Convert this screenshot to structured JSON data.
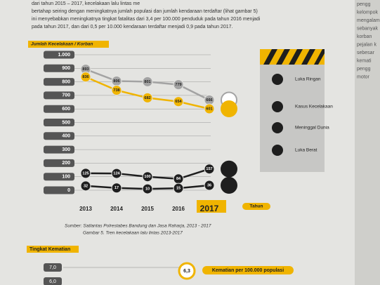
{
  "page": {
    "paragraph": [
      "dari tahun 2015 – 2017, kecelakaan lalu lintas me",
      "bertahap seiring dengan meningkatnya jumlah populasi dan jumlah kendaraan terdaftar (lihat gambar 5)",
      "ini menyebabkan meningkatnya tingkat fatalitas dari 3,4 per 100.000 penduduk pada tahun 2016 menjadi",
      "pada tahun 2017, dan dari 0,5 per 10.000 kendaraan terdaftar menjadi 0,9 pada tahun 2017."
    ],
    "side_words": [
      "pengg",
      "kelompok",
      "mengalam",
      "sebanyak",
      "korban",
      "pejalan k",
      "sebesar",
      "kemati",
      "pengg",
      "motor"
    ],
    "source": "Sumber: Satlantas Polrestabes Bandung dan Jasa Raharja, 2013 - 2017",
    "caption": "Gambar 5. Tren kecelakaan lalu lintas 2013-2017",
    "section2_title": "Tingkat Kematian",
    "section2_ticks": [
      "7,0",
      "6,0"
    ],
    "section2_value": "6,3",
    "section2_label": "Kematian per 100.000 populasi"
  },
  "chart_data": {
    "type": "line",
    "y_label": "Jumlah Kecelakaan / Korban",
    "x_label": "Tahun",
    "categories": [
      "2013",
      "2014",
      "2015",
      "2016",
      "2017"
    ],
    "ylim": [
      0,
      1000
    ],
    "yticks": [
      0,
      100,
      200,
      300,
      400,
      500,
      600,
      700,
      800,
      900,
      {
        "value": 1000,
        "label": "1.000"
      }
    ],
    "series": [
      {
        "name": "Luka Ringan",
        "color": "#a3a3a3",
        "values": [
          893,
          806,
          801,
          779,
          666
        ]
      },
      {
        "name": "Kasus Kecelakaan",
        "color": "#f0b400",
        "values": [
          836,
          738,
          682,
          654,
          601
        ]
      },
      {
        "name": "Meninggal Dunia",
        "color": "#1e1e1e",
        "values": [
          125,
          124,
          100,
          84,
          157
        ]
      },
      {
        "name": "Luka Berat",
        "color": "#1e1e1e",
        "values": [
          32,
          17,
          10,
          15,
          36
        ]
      }
    ]
  }
}
